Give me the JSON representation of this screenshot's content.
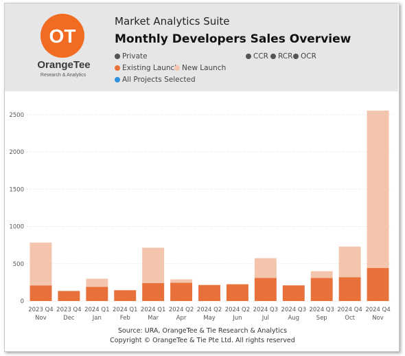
{
  "header": {
    "suite": "Market Analytics Suite",
    "title": "Monthly Developers Sales Overview",
    "logo_text": "OT",
    "brand_name": "OrangeTee",
    "brand_tagline": "Research & Analytics"
  },
  "filters": {
    "private": {
      "label": "Private",
      "color": "#555555"
    },
    "ccr": {
      "label": "CCR",
      "color": "#555555"
    },
    "rcr": {
      "label": "RCR",
      "color": "#555555"
    },
    "ocr": {
      "label": "OCR",
      "color": "#555555"
    },
    "existing": {
      "label": "Existing Launch",
      "color": "#e8703a"
    },
    "new": {
      "label": "New Launch",
      "color": "#f4c5ad"
    },
    "all_projects": {
      "label": "All Projects Selected",
      "color": "#2f8fe0"
    }
  },
  "footer": {
    "source": "Source: URA, OrangeTee & Tie Research & Analytics",
    "copyright": "Copyright © OrangeTee & Tie Pte Ltd. All rights reserved"
  },
  "chart_data": {
    "type": "bar",
    "stacked": true,
    "categories": [
      [
        "2023 Q4",
        "Nov"
      ],
      [
        "2023 Q4",
        "Dec"
      ],
      [
        "2024 Q1",
        "Jan"
      ],
      [
        "2024 Q1",
        "Feb"
      ],
      [
        "2024 Q1",
        "Mar"
      ],
      [
        "2024 Q2",
        "Apr"
      ],
      [
        "2024 Q2",
        "May"
      ],
      [
        "2024 Q2",
        "Jun"
      ],
      [
        "2024 Q3",
        "Jul"
      ],
      [
        "2024 Q3",
        "Aug"
      ],
      [
        "2024 Q3",
        "Sep"
      ],
      [
        "2024 Q4",
        "Oct"
      ],
      [
        "2024 Q4",
        "Nov"
      ]
    ],
    "series": [
      {
        "name": "Existing Launch",
        "color": "#e8703a",
        "values": [
          210,
          135,
          190,
          145,
          240,
          245,
          215,
          225,
          310,
          210,
          310,
          320,
          445
        ]
      },
      {
        "name": "New Launch",
        "color": "#f4c5ad",
        "values": [
          575,
          0,
          110,
          0,
          475,
          45,
          0,
          0,
          265,
          0,
          90,
          410,
          2110
        ]
      }
    ],
    "ylim": [
      0,
      2600
    ],
    "yticks": [
      0,
      500,
      1000,
      1500,
      2000,
      2500
    ],
    "grid": true,
    "xlabel": "",
    "ylabel": ""
  }
}
